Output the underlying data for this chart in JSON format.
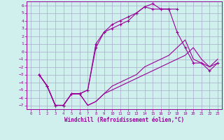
{
  "background_color": "#cff0ec",
  "grid_color": "#aaaacc",
  "line_color": "#990099",
  "xlabel": "Windchill (Refroidissement éolien,°C)",
  "xlim": [
    -0.5,
    23.5
  ],
  "ylim": [
    -7.5,
    6.5
  ],
  "yticks": [
    -7,
    -6,
    -5,
    -4,
    -3,
    -2,
    -1,
    0,
    1,
    2,
    3,
    4,
    5,
    6
  ],
  "xticks": [
    0,
    1,
    2,
    3,
    4,
    5,
    6,
    7,
    8,
    9,
    10,
    11,
    12,
    13,
    14,
    15,
    16,
    17,
    18,
    19,
    20,
    21,
    22,
    23
  ],
  "lines": [
    {
      "x": [
        1,
        2,
        3,
        4,
        5,
        6,
        7,
        8,
        9,
        10,
        11,
        12,
        13,
        14,
        15,
        16,
        17,
        18
      ],
      "y": [
        -3,
        -4.5,
        -7,
        -7,
        -5.5,
        -5.5,
        -5,
        0.5,
        2.5,
        3.5,
        4,
        4.5,
        5,
        5.8,
        6.2,
        5.5,
        5.5,
        5.5
      ],
      "marker": "+"
    },
    {
      "x": [
        1,
        2,
        3,
        4,
        5,
        6,
        7,
        8,
        9,
        10,
        11,
        12,
        13,
        14,
        15,
        16,
        17,
        18,
        19,
        20,
        21,
        22,
        23
      ],
      "y": [
        -3,
        -4.5,
        -7,
        -7,
        -5.5,
        -5.5,
        -7,
        -6.5,
        -5.5,
        -5,
        -4.5,
        -4,
        -3.5,
        -3,
        -2.5,
        -2,
        -1.5,
        -1,
        -0.5,
        0.5,
        -1,
        -2,
        -1.5
      ],
      "marker": null
    },
    {
      "x": [
        1,
        2,
        3,
        4,
        5,
        6,
        7,
        8,
        9,
        10,
        11,
        12,
        13,
        14,
        15,
        16,
        17,
        18,
        19,
        20,
        21,
        22,
        23
      ],
      "y": [
        -3,
        -4.5,
        -7,
        -7,
        -5.5,
        -5.5,
        -7,
        -6.5,
        -5.5,
        -4.5,
        -4,
        -3.5,
        -3,
        -2,
        -1.5,
        -1,
        -0.5,
        0.5,
        1.5,
        -1,
        -1.5,
        -2,
        -1
      ],
      "marker": null
    },
    {
      "x": [
        1,
        2,
        3,
        4,
        5,
        6,
        7,
        8,
        9,
        10,
        11,
        12,
        13,
        14,
        15,
        16,
        17,
        18,
        19,
        20,
        21,
        22,
        23
      ],
      "y": [
        -3,
        -4.5,
        -7,
        -7,
        -5.5,
        -5.5,
        -5,
        1,
        2.5,
        3,
        3.5,
        4,
        5,
        5.8,
        5.5,
        5.5,
        5.5,
        2.5,
        0.5,
        -1.5,
        -1.5,
        -2.5,
        -1.5
      ],
      "marker": "+"
    }
  ]
}
